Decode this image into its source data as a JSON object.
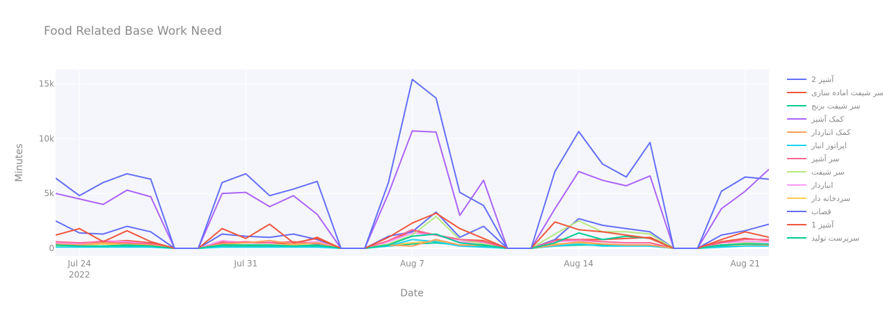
{
  "chart_data": {
    "type": "line",
    "title": "Food Related Base Work Need",
    "xlabel": "Date",
    "ylabel": "Minutes",
    "x": [
      "2022-07-23",
      "2022-07-24",
      "2022-07-25",
      "2022-07-26",
      "2022-07-27",
      "2022-07-28",
      "2022-07-29",
      "2022-07-30",
      "2022-07-31",
      "2022-08-01",
      "2022-08-02",
      "2022-08-03",
      "2022-08-04",
      "2022-08-05",
      "2022-08-06",
      "2022-08-07",
      "2022-08-08",
      "2022-08-09",
      "2022-08-10",
      "2022-08-11",
      "2022-08-12",
      "2022-08-13",
      "2022-08-14",
      "2022-08-15",
      "2022-08-16",
      "2022-08-17",
      "2022-08-18",
      "2022-08-19",
      "2022-08-20",
      "2022-08-21",
      "2022-08-22"
    ],
    "x_ticks": [
      {
        "date": "2022-07-24",
        "label": "Jul 24",
        "sublabel": "2022"
      },
      {
        "date": "2022-07-31",
        "label": "Jul 31",
        "sublabel": ""
      },
      {
        "date": "2022-08-07",
        "label": "Aug 7",
        "sublabel": ""
      },
      {
        "date": "2022-08-14",
        "label": "Aug 14",
        "sublabel": ""
      },
      {
        "date": "2022-08-21",
        "label": "Aug 21",
        "sublabel": ""
      }
    ],
    "y_ticks": [
      {
        "value": 0,
        "label": "0"
      },
      {
        "value": 5000,
        "label": "5k"
      },
      {
        "value": 10000,
        "label": "10k"
      },
      {
        "value": 15000,
        "label": "15k"
      }
    ],
    "xlim": [
      "2022-07-23",
      "2022-08-22"
    ],
    "ylim": [
      -700,
      16300
    ],
    "grid": true,
    "legend_position": "right",
    "series": [
      {
        "name": "آشپز 2",
        "color": "#636efa",
        "values": [
          6400,
          4800,
          6000,
          6800,
          6300,
          0,
          0,
          6000,
          6800,
          4800,
          5400,
          6100,
          0,
          0,
          6000,
          15400,
          13700,
          5100,
          3900,
          0,
          0,
          7000,
          10650,
          7700,
          6500,
          9650,
          0,
          0,
          5200,
          6500,
          6300
        ]
      },
      {
        "name": "سر شیفت اماده سازی",
        "color": "#ef553b",
        "values": [
          1200,
          1800,
          600,
          1600,
          600,
          0,
          0,
          1800,
          900,
          2200,
          500,
          900,
          0,
          0,
          1000,
          2300,
          3200,
          1800,
          900,
          0,
          0,
          2400,
          1700,
          1500,
          1200,
          900,
          0,
          0,
          800,
          1500,
          1000
        ]
      },
      {
        "name": "سر شیفت برنج",
        "color": "#00cc96",
        "values": [
          300,
          200,
          200,
          300,
          200,
          0,
          0,
          300,
          300,
          300,
          200,
          300,
          0,
          0,
          300,
          1100,
          1300,
          500,
          300,
          0,
          0,
          500,
          1400,
          800,
          1100,
          900,
          0,
          0,
          300,
          400,
          400
        ]
      },
      {
        "name": "کمک آشپز",
        "color": "#ab63fa",
        "values": [
          5000,
          4500,
          4000,
          5300,
          4700,
          0,
          0,
          5000,
          5100,
          3800,
          4800,
          3100,
          0,
          0,
          5000,
          10700,
          10600,
          3000,
          6200,
          0,
          0,
          3600,
          7000,
          6200,
          5700,
          6600,
          0,
          0,
          3600,
          5200,
          7200
        ]
      },
      {
        "name": "کمک انباردار",
        "color": "#ffa15a",
        "values": [
          400,
          300,
          500,
          400,
          300,
          0,
          0,
          400,
          500,
          700,
          400,
          500,
          0,
          0,
          300,
          200,
          800,
          300,
          300,
          0,
          0,
          300,
          600,
          400,
          300,
          300,
          0,
          0,
          300,
          400,
          300
        ]
      },
      {
        "name": "اپراتور انبار",
        "color": "#19d3f3",
        "values": [
          100,
          100,
          100,
          100,
          100,
          0,
          0,
          100,
          100,
          100,
          100,
          100,
          0,
          0,
          200,
          800,
          600,
          200,
          100,
          0,
          0,
          200,
          400,
          200,
          200,
          200,
          0,
          0,
          100,
          200,
          200
        ]
      },
      {
        "name": "سر آشپز",
        "color": "#ff6692",
        "values": [
          600,
          500,
          600,
          500,
          400,
          0,
          0,
          500,
          600,
          500,
          600,
          400,
          0,
          0,
          700,
          1700,
          1200,
          800,
          600,
          0,
          0,
          700,
          800,
          600,
          500,
          500,
          0,
          0,
          500,
          800,
          800
        ]
      },
      {
        "name": "سر شیفت",
        "color": "#b6e880",
        "values": [
          200,
          200,
          200,
          300,
          200,
          0,
          0,
          300,
          300,
          300,
          200,
          300,
          0,
          0,
          400,
          1200,
          2900,
          800,
          400,
          0,
          0,
          1300,
          2500,
          1500,
          1500,
          1300,
          0,
          0,
          300,
          500,
          400
        ]
      },
      {
        "name": "انباردار",
        "color": "#ff97ff",
        "values": [
          500,
          400,
          700,
          600,
          400,
          0,
          0,
          700,
          500,
          600,
          500,
          600,
          0,
          0,
          600,
          1400,
          1200,
          600,
          500,
          0,
          0,
          600,
          700,
          600,
          500,
          500,
          0,
          0,
          500,
          600,
          600
        ]
      },
      {
        "name": "سردخانه دار",
        "color": "#fecb52",
        "values": [
          300,
          300,
          400,
          300,
          300,
          0,
          0,
          300,
          300,
          300,
          300,
          300,
          0,
          0,
          300,
          500,
          700,
          300,
          300,
          0,
          0,
          400,
          500,
          400,
          300,
          300,
          0,
          0,
          300,
          300,
          300
        ]
      },
      {
        "name": "قصاب",
        "color": "#636efa",
        "values": [
          2500,
          1400,
          1300,
          2000,
          1500,
          0,
          0,
          1300,
          1100,
          1000,
          1300,
          800,
          0,
          0,
          1100,
          1500,
          3300,
          1000,
          2000,
          0,
          0,
          800,
          2700,
          2100,
          1800,
          1500,
          0,
          0,
          1200,
          1600,
          2200
        ]
      },
      {
        "name": "آشپز 1",
        "color": "#ef553b",
        "values": [
          500,
          500,
          600,
          700,
          500,
          0,
          0,
          600,
          500,
          500,
          400,
          1000,
          0,
          0,
          600,
          1600,
          1200,
          800,
          700,
          0,
          0,
          800,
          800,
          800,
          900,
          1000,
          0,
          0,
          600,
          900,
          700
        ]
      },
      {
        "name": "سرپرست تولید",
        "color": "#00cc96",
        "values": [
          200,
          200,
          200,
          200,
          200,
          0,
          0,
          200,
          200,
          200,
          200,
          200,
          0,
          0,
          200,
          400,
          500,
          300,
          200,
          0,
          0,
          200,
          300,
          300,
          300,
          200,
          0,
          0,
          200,
          300,
          300
        ]
      }
    ]
  }
}
